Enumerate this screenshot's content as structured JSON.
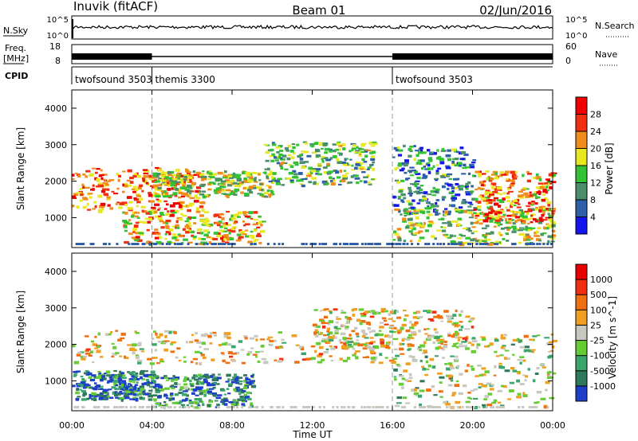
{
  "header": {
    "station": "Inuvik (fitACF)",
    "beam": "Beam 01",
    "date": "02/Jun/2016"
  },
  "strip_labels": {
    "nsky": "N.Sky",
    "nsky_ticks": [
      "10^5",
      "10^0"
    ],
    "nsearch": "N.Search",
    "nsearch_ticks": [
      "10^5",
      "10^0"
    ],
    "freq_line1": "Freq.",
    "freq_line2": "[MHz]",
    "freq_ticks": [
      "18",
      "8"
    ],
    "nave": "Nave",
    "nave_ticks": [
      "60",
      "0"
    ],
    "cpid": "CPID"
  },
  "cpid_segments": [
    {
      "label": "twofsound 3503",
      "start": "00:00"
    },
    {
      "label": "themis 3300",
      "start": "04:00"
    },
    {
      "label": "twofsound 3503",
      "start": "16:00"
    }
  ],
  "time_axis": {
    "label": "Time UT",
    "ticks": [
      "00:00",
      "04:00",
      "08:00",
      "12:00",
      "16:00",
      "20:00",
      "00:00"
    ]
  },
  "chart_data": [
    {
      "type": "heatmap",
      "panel": "power",
      "ylabel": "Slant Range [km]",
      "y_ticks": [
        "1000",
        "2000",
        "3000",
        "4000"
      ],
      "ylim": [
        180,
        4500
      ],
      "xlim_hours": [
        0,
        24
      ],
      "colorbar_label": "Power [dB]",
      "colorbar_ticks": [
        "4",
        "8",
        "12",
        "16",
        "20",
        "24",
        "28"
      ],
      "colors": [
        "#1515f0",
        "#2e5fa8",
        "#4a8f6a",
        "#33c233",
        "#e8e820",
        "#f08c1a",
        "#f03010",
        "#f00000"
      ],
      "regions": [
        {
          "t0": 0.0,
          "t1": 6.5,
          "r0": 1200,
          "r1": 2400,
          "level": 0.75
        },
        {
          "t0": 4.0,
          "t1": 10.0,
          "r0": 1600,
          "r1": 2300,
          "level": 0.5
        },
        {
          "t0": 2.5,
          "t1": 9.5,
          "r0": 300,
          "r1": 1200,
          "level": 0.65
        },
        {
          "t0": 9.5,
          "t1": 15.0,
          "r0": 1900,
          "r1": 3100,
          "level": 0.4
        },
        {
          "t0": 16.0,
          "t1": 20.0,
          "r0": 1100,
          "r1": 3000,
          "level": 0.3
        },
        {
          "t0": 16.0,
          "t1": 24.0,
          "r0": 300,
          "r1": 1300,
          "level": 0.5
        },
        {
          "t0": 20.0,
          "t1": 24.0,
          "r0": 900,
          "r1": 2300,
          "level": 0.7
        }
      ]
    },
    {
      "type": "heatmap",
      "panel": "velocity",
      "ylabel": "Slant Range [km]",
      "y_ticks": [
        "1000",
        "2000",
        "3000",
        "4000"
      ],
      "ylim": [
        180,
        4500
      ],
      "xlim_hours": [
        0,
        24
      ],
      "colorbar_label": "Velocity [m s^-1]",
      "colorbar_ticks": [
        "1000",
        "500",
        "100",
        "25",
        "-25",
        "-100",
        "-500",
        "-1000"
      ],
      "colors": [
        "#1e3fc8",
        "#2e7a5a",
        "#3aa66b",
        "#66cc33",
        "#c8c8c0",
        "#f0a020",
        "#f07010",
        "#f03010",
        "#e80000"
      ],
      "regions": [
        {
          "t0": 0.0,
          "t1": 16.0,
          "r0": 1500,
          "r1": 2400,
          "level": 0.55
        },
        {
          "t0": 12.0,
          "t1": 20.0,
          "r0": 1900,
          "r1": 3000,
          "level": 0.55
        },
        {
          "t0": 0.0,
          "t1": 4.0,
          "r0": 500,
          "r1": 1300,
          "level": 0.15
        },
        {
          "t0": 4.0,
          "t1": 9.0,
          "r0": 300,
          "r1": 1200,
          "level": 0.2
        },
        {
          "t0": 16.0,
          "t1": 24.0,
          "r0": 300,
          "r1": 2300,
          "level": 0.45
        }
      ]
    }
  ]
}
